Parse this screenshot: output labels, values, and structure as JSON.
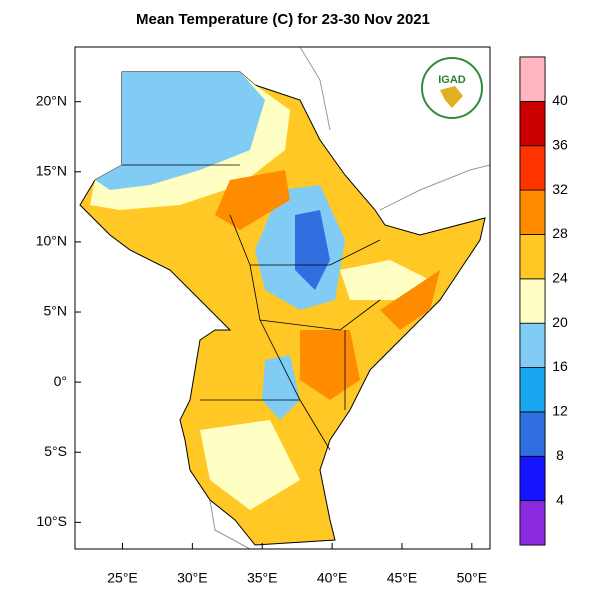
{
  "map": {
    "title": "Mean Temperature (C) for 23-30 Nov 2021",
    "logo_text": "IGAD",
    "xlim": [
      21.6,
      51.3
    ],
    "ylim": [
      -11.9,
      23.9
    ],
    "xticks": [
      {
        "value": 25,
        "label": "25°E"
      },
      {
        "value": 30,
        "label": "30°E"
      },
      {
        "value": 35,
        "label": "35°E"
      },
      {
        "value": 40,
        "label": "40°E"
      },
      {
        "value": 45,
        "label": "45°E"
      },
      {
        "value": 50,
        "label": "50°E"
      }
    ],
    "yticks": [
      {
        "value": 20,
        "label": "20°N"
      },
      {
        "value": 15,
        "label": "15°N"
      },
      {
        "value": 10,
        "label": "10°N"
      },
      {
        "value": 5,
        "label": "5°N"
      },
      {
        "value": 0,
        "label": "0°"
      },
      {
        "value": -5,
        "label": "5°S"
      },
      {
        "value": -10,
        "label": "10°S"
      }
    ],
    "colorbar": {
      "levels": [
        4,
        8,
        12,
        16,
        20,
        24,
        28,
        32,
        36,
        40
      ],
      "colors": [
        "#8a2be2",
        "#1414ff",
        "#2f6fe0",
        "#19a6f0",
        "#80ccf5",
        "#ffffc4",
        "#ffc825",
        "#ff8c00",
        "#ff3300",
        "#cc0000",
        "#ffb6c1"
      ]
    }
  }
}
